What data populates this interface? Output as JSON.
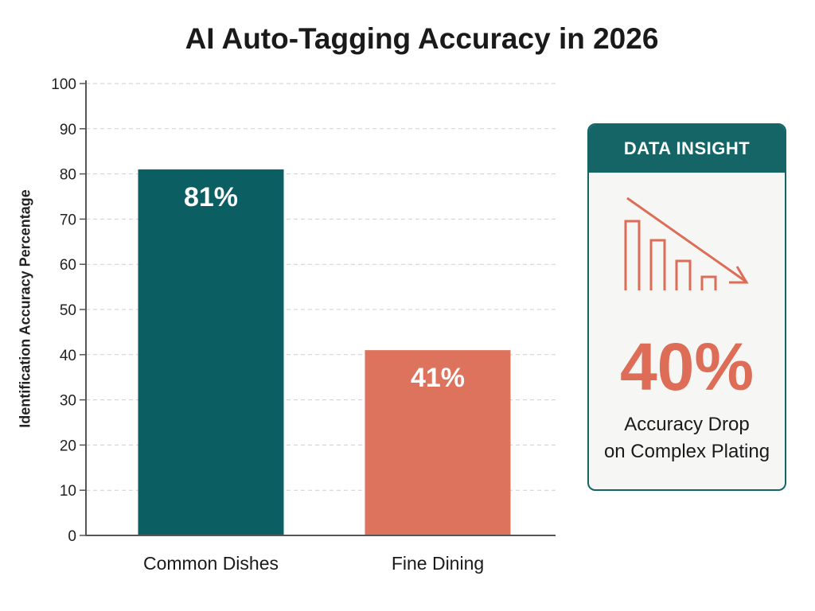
{
  "chart_data": {
    "type": "bar",
    "title": "AI Auto-Tagging Accuracy in 2026",
    "xlabel": "",
    "ylabel": "Identification Accuracy Percentage",
    "categories": [
      "Common Dishes",
      "Fine Dining"
    ],
    "values": [
      81,
      41
    ],
    "data_labels": [
      "81%",
      "41%"
    ],
    "bar_colors": [
      "#0b5f63",
      "#de735d"
    ],
    "ylim": [
      0,
      100
    ],
    "yticks": [
      0,
      10,
      20,
      30,
      40,
      50,
      60,
      70,
      80,
      90,
      100
    ],
    "grid": true,
    "legend": "none"
  },
  "insight": {
    "header": "DATA INSIGHT",
    "value": "40%",
    "caption_line1": "Accuracy Drop",
    "caption_line2": "on Complex Plating",
    "icon": "declining-bars-icon",
    "accent_color": "#de6d58",
    "header_color": "#156567"
  }
}
